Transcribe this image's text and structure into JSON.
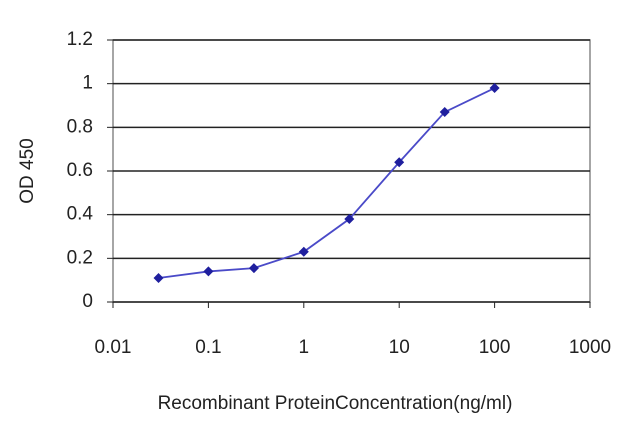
{
  "chart_data": {
    "type": "line",
    "x_label": "Recombinant ProteinConcentration(ng/ml)",
    "y_label": "OD 450",
    "x": [
      0.03,
      0.1,
      0.3,
      1,
      3,
      10,
      30,
      100
    ],
    "values": [
      0.11,
      0.14,
      0.155,
      0.23,
      0.38,
      0.64,
      0.87,
      0.98
    ],
    "color": "#1f1f9e",
    "line_color": "#4a4ac8",
    "xlim": [
      0.01,
      1000
    ],
    "xticks": [
      0.01,
      0.1,
      1,
      10,
      100,
      1000
    ],
    "x_log": true,
    "ylim": [
      0,
      1.2
    ],
    "yticks": [
      0,
      0.2,
      0.4,
      0.6,
      0.8,
      1,
      1.2
    ],
    "grid": true
  }
}
